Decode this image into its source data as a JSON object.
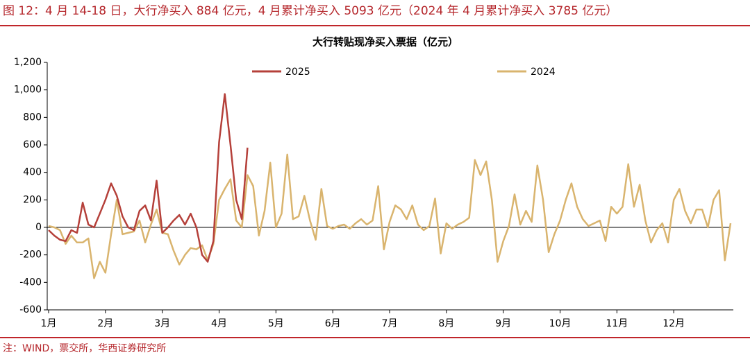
{
  "header": {
    "title": "图 12：4 月 14-18 日，大行净买入 884 亿元，4 月累计净买入 5093 亿元（2024 年 4 月累计净买入 3785 亿元）"
  },
  "footer": {
    "source": "注：WIND，票交所，华西证券研究所"
  },
  "chart_data": {
    "type": "line",
    "title": "大行转贴现净买入票据（亿元）",
    "categories": [
      "1月",
      null,
      null,
      null,
      null,
      null,
      null,
      null,
      null,
      null,
      "2月",
      null,
      null,
      null,
      null,
      null,
      null,
      null,
      null,
      null,
      "3月",
      null,
      null,
      null,
      null,
      null,
      null,
      null,
      null,
      null,
      "4月",
      null,
      null,
      null,
      null,
      null,
      null,
      null,
      null,
      null,
      "5月",
      null,
      null,
      null,
      null,
      null,
      null,
      null,
      null,
      null,
      "6月",
      null,
      null,
      null,
      null,
      null,
      null,
      null,
      null,
      null,
      "7月",
      null,
      null,
      null,
      null,
      null,
      null,
      null,
      null,
      null,
      "8月",
      null,
      null,
      null,
      null,
      null,
      null,
      null,
      null,
      null,
      "9月",
      null,
      null,
      null,
      null,
      null,
      null,
      null,
      null,
      null,
      "10月",
      null,
      null,
      null,
      null,
      null,
      null,
      null,
      null,
      null,
      "11月",
      null,
      null,
      null,
      null,
      null,
      null,
      null,
      null,
      null,
      "12月",
      null,
      null,
      null,
      null,
      null,
      null,
      null,
      null,
      null,
      null
    ],
    "series": [
      {
        "name": "2025",
        "color": "#b5403a",
        "values": [
          -20,
          -60,
          -90,
          -100,
          -20,
          -40,
          180,
          20,
          0,
          100,
          200,
          320,
          230,
          80,
          0,
          -20,
          120,
          160,
          50,
          340,
          -40,
          0,
          50,
          90,
          20,
          100,
          0,
          -200,
          -250,
          -100,
          620,
          970,
          600,
          200,
          60,
          580,
          null,
          null,
          null,
          null,
          null,
          null,
          null,
          null,
          null,
          null,
          null,
          null,
          null,
          null,
          null,
          null,
          null,
          null,
          null,
          null,
          null,
          null,
          null,
          null,
          null,
          null,
          null,
          null,
          null,
          null,
          null,
          null,
          null,
          null,
          null,
          null,
          null,
          null,
          null,
          null,
          null,
          null,
          null,
          null,
          null,
          null,
          null,
          null,
          null,
          null,
          null,
          null,
          null,
          null,
          null,
          null,
          null,
          null,
          null,
          null,
          null,
          null,
          null,
          null,
          null,
          null,
          null,
          null,
          null,
          null,
          null,
          null,
          null,
          null,
          null,
          null,
          null,
          null,
          null,
          null,
          null,
          null,
          null,
          null,
          null
        ]
      },
      {
        "name": "2024",
        "color": "#d9b46e",
        "values": [
          10,
          0,
          -20,
          -120,
          -60,
          -110,
          -110,
          -80,
          -370,
          -250,
          -330,
          -50,
          200,
          -50,
          -40,
          -30,
          50,
          -110,
          20,
          130,
          -40,
          -50,
          -170,
          -270,
          -200,
          -150,
          -160,
          -130,
          -240,
          -120,
          200,
          280,
          350,
          50,
          0,
          380,
          300,
          -60,
          120,
          470,
          0,
          100,
          530,
          60,
          80,
          230,
          50,
          -90,
          280,
          10,
          -10,
          10,
          20,
          -10,
          30,
          60,
          20,
          50,
          300,
          -160,
          40,
          160,
          130,
          60,
          160,
          20,
          -20,
          10,
          210,
          -190,
          30,
          -10,
          20,
          40,
          70,
          490,
          380,
          480,
          200,
          -250,
          -100,
          10,
          240,
          20,
          120,
          40,
          450,
          200,
          -180,
          -50,
          50,
          200,
          320,
          150,
          60,
          10,
          30,
          50,
          -100,
          150,
          100,
          150,
          460,
          150,
          310,
          50,
          -110,
          -20,
          30,
          -110,
          200,
          280,
          120,
          30,
          130,
          130,
          0,
          200,
          270,
          -240,
          30
        ]
      }
    ],
    "ylim": [
      -600,
      1200
    ],
    "yticks": [
      -600,
      -400,
      -200,
      0,
      200,
      400,
      600,
      800,
      {
        "value": 1000,
        "label": "1,000"
      },
      {
        "value": 1200,
        "label": "1,200"
      }
    ],
    "grid": false,
    "legend": "top"
  }
}
